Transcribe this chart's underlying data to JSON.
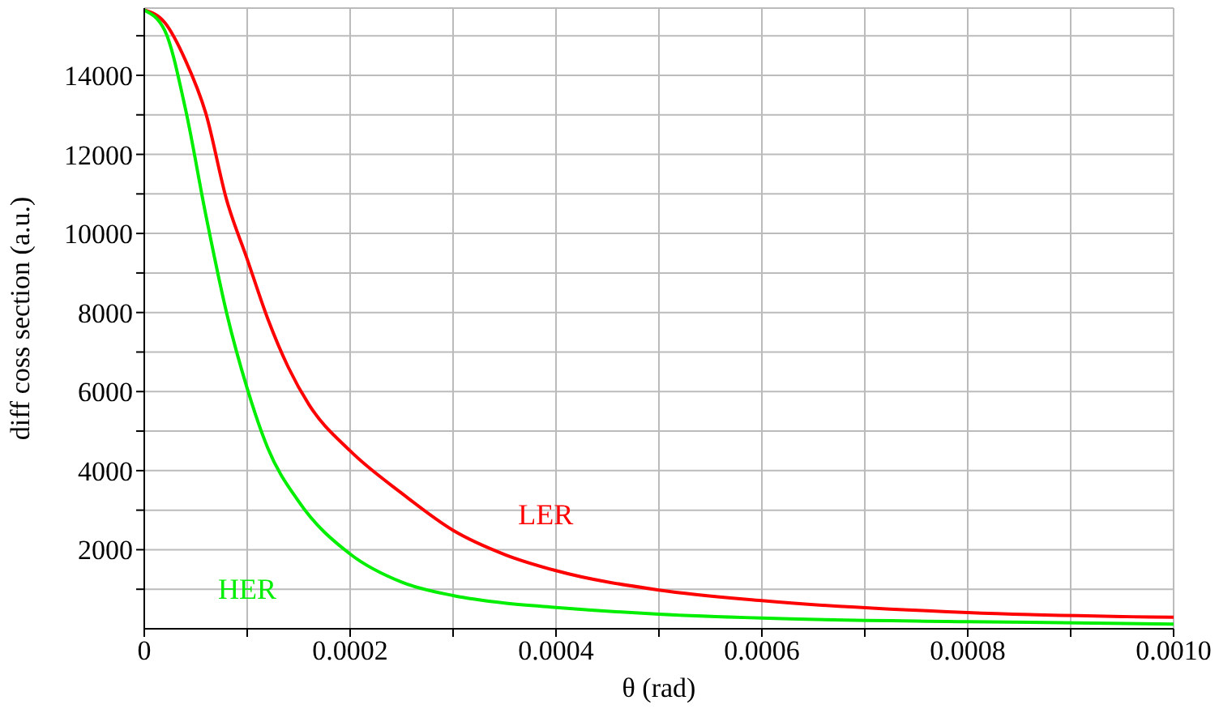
{
  "chart_data": {
    "type": "line",
    "xlabel": "θ  (rad)",
    "ylabel": "diff coss section  (a.u.)",
    "xlim": [
      0,
      0.001
    ],
    "ylim": [
      0,
      15700
    ],
    "xticks": [
      0,
      {
        "value": 0.0001,
        "label": null
      },
      0.0002,
      {
        "value": 0.0003,
        "label": null
      },
      0.0004,
      {
        "value": 0.0005,
        "label": null
      },
      0.0006,
      {
        "value": 0.0007,
        "label": null
      },
      0.0008,
      {
        "value": 0.0009,
        "label": null
      },
      {
        "value": 0.001,
        "label": "0.0010"
      }
    ],
    "yticks": [
      {
        "value": 1000,
        "label": null
      },
      2000,
      {
        "value": 3000,
        "label": null
      },
      4000,
      {
        "value": 5000,
        "label": null
      },
      6000,
      {
        "value": 7000,
        "label": null
      },
      8000,
      {
        "value": 9000,
        "label": null
      },
      10000,
      {
        "value": 11000,
        "label": null
      },
      12000,
      {
        "value": 13000,
        "label": null
      },
      14000,
      {
        "value": 15000,
        "label": null
      }
    ],
    "grid": true,
    "legend": false,
    "marker": "none",
    "line_style": "solid",
    "series": [
      {
        "name": "LER",
        "color": "#ff0000",
        "x": [
          0,
          2e-05,
          4e-05,
          6e-05,
          8e-05,
          0.0001,
          0.00012,
          0.00014,
          0.00016,
          0.0002,
          0.00025,
          0.0003,
          0.00035,
          0.0004,
          0.0005,
          0.0006,
          0.0008,
          0.001
        ],
        "values": [
          15650,
          15330,
          14380,
          13020,
          10850,
          9350,
          7840,
          6610,
          5670,
          4500,
          3430,
          2490,
          1880,
          1470,
          980,
          710,
          410,
          290
        ]
      },
      {
        "name": "HER",
        "color": "#00ee00",
        "x": [
          0,
          2e-05,
          4e-05,
          6e-05,
          8e-05,
          0.0001,
          0.00012,
          0.00015,
          0.0002,
          0.00025,
          0.0003,
          0.00035,
          0.0004,
          0.0005,
          0.0006,
          0.0008,
          0.001
        ],
        "values": [
          15650,
          15130,
          13150,
          10440,
          7990,
          6080,
          4570,
          3220,
          1890,
          1180,
          840,
          650,
          540,
          370,
          270,
          180,
          120
        ]
      }
    ]
  }
}
